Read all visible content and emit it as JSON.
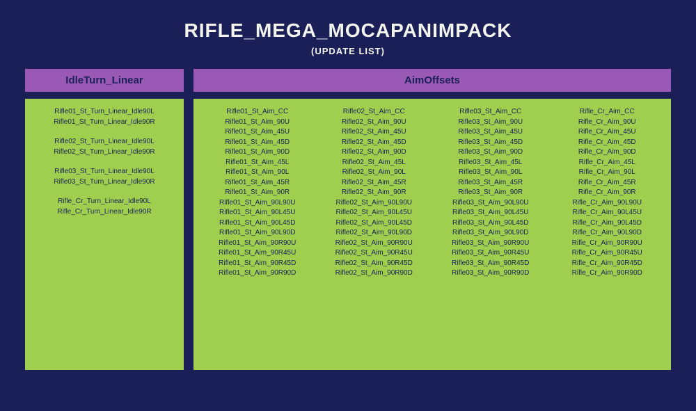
{
  "title": "RIFLE_MEGA_MOCAPANIMPACK",
  "subtitle": "(UPDATE LIST)",
  "colors": {
    "background": "#1a2057",
    "header_bg": "#9b59b6",
    "body_bg": "#a0ce4e",
    "title_text": "#f5f5ef",
    "body_text": "#1a2057",
    "header_text": "#1a2057"
  },
  "left": {
    "header": "IdleTurn_Linear",
    "groups": [
      [
        "Rifle01_St_Turn_Linear_Idle90L",
        "Rifle01_St_Turn_Linear_Idle90R"
      ],
      [
        "Rifle02_St_Turn_Linear_Idle90L",
        "Rifle02_St_Turn_Linear_Idle90R"
      ],
      [
        "Rifle03_St_Turn_Linear_Idle90L",
        "Rifle03_St_Turn_Linear_Idle90R"
      ],
      [
        "Rifle_Cr_Turn_Linear_Idle90L",
        "Rifle_Cr_Turn_Linear_Idle90R"
      ]
    ]
  },
  "right": {
    "header": "AimOffsets",
    "columns": [
      [
        "Rifle01_St_Aim_CC",
        "Rifle01_St_Aim_90U",
        "Rifle01_St_Aim_45U",
        "Rifle01_St_Aim_45D",
        "Rifle01_St_Aim_90D",
        "Rifle01_St_Aim_45L",
        "Rifle01_St_Aim_90L",
        "Rifle01_St_Aim_45R",
        "Rifle01_St_Aim_90R",
        "Rifle01_St_Aim_90L90U",
        "Rifle01_St_Aim_90L45U",
        "Rifle01_St_Aim_90L45D",
        "Rifle01_St_Aim_90L90D",
        "Rifle01_St_Aim_90R90U",
        "Rifle01_St_Aim_90R45U",
        "Rifle01_St_Aim_90R45D",
        "Rifle01_St_Aim_90R90D"
      ],
      [
        "Rifle02_St_Aim_CC",
        "Rifle02_St_Aim_90U",
        "Rifle02_St_Aim_45U",
        "Rifle02_St_Aim_45D",
        "Rifle02_St_Aim_90D",
        "Rifle02_St_Aim_45L",
        "Rifle02_St_Aim_90L",
        "Rifle02_St_Aim_45R",
        "Rifle02_St_Aim_90R",
        "Rifle02_St_Aim_90L90U",
        "Rifle02_St_Aim_90L45U",
        "Rifle02_St_Aim_90L45D",
        "Rifle02_St_Aim_90L90D",
        "Rifle02_St_Aim_90R90U",
        "Rifle02_St_Aim_90R45U",
        "Rifle02_St_Aim_90R45D",
        "Rifle02_St_Aim_90R90D"
      ],
      [
        "Rifle03_St_Aim_CC",
        "Rifle03_St_Aim_90U",
        "Rifle03_St_Aim_45U",
        "Rifle03_St_Aim_45D",
        "Rifle03_St_Aim_90D",
        "Rifle03_St_Aim_45L",
        "Rifle03_St_Aim_90L",
        "Rifle03_St_Aim_45R",
        "Rifle03_St_Aim_90R",
        "Rifle03_St_Aim_90L90U",
        "Rifle03_St_Aim_90L45U",
        "Rifle03_St_Aim_90L45D",
        "Rifle03_St_Aim_90L90D",
        "Rifle03_St_Aim_90R90U",
        "Rifle03_St_Aim_90R45U",
        "Rifle03_St_Aim_90R45D",
        "Rifle03_St_Aim_90R90D"
      ],
      [
        "Rifle_Cr_Aim_CC",
        "Rifle_Cr_Aim_90U",
        "Rifle_Cr_Aim_45U",
        "Rifle_Cr_Aim_45D",
        "Rifle_Cr_Aim_90D",
        "Rifle_Cr_Aim_45L",
        "Rifle_Cr_Aim_90L",
        "Rifle_Cr_Aim_45R",
        "Rifle_Cr_Aim_90R",
        "Rifle_Cr_Aim_90L90U",
        "Rifle_Cr_Aim_90L45U",
        "Rifle_Cr_Aim_90L45D",
        "Rifle_Cr_Aim_90L90D",
        "Rifle_Cr_Aim_90R90U",
        "Rifle_Cr_Aim_90R45U",
        "Rifle_Cr_Aim_90R45D",
        "Rifle_Cr_Aim_90R90D"
      ]
    ]
  }
}
